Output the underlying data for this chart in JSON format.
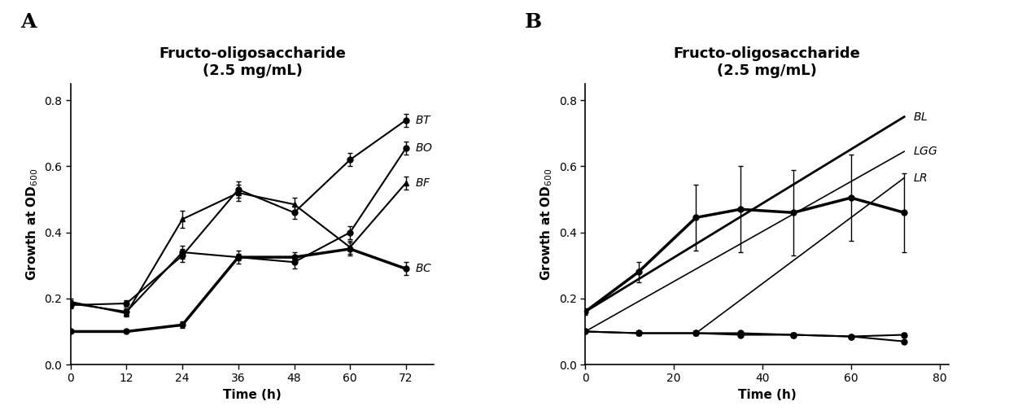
{
  "panel_A": {
    "title": "Fructo-oligosaccharide\n(2.5 mg/mL)",
    "xlabel": "Time (h)",
    "ylabel": "Growth at OD$_{600}$",
    "xlim": [
      0,
      78
    ],
    "ylim": [
      0.0,
      0.85
    ],
    "yticks": [
      0.0,
      0.2,
      0.4,
      0.6,
      0.8
    ],
    "xticks": [
      0,
      12,
      24,
      36,
      48,
      60,
      72
    ],
    "series": {
      "BT": {
        "x": [
          0,
          12,
          24,
          36,
          48,
          60,
          72
        ],
        "y": [
          0.18,
          0.185,
          0.33,
          0.53,
          0.46,
          0.62,
          0.74
        ],
        "yerr": [
          0.01,
          0.01,
          0.02,
          0.025,
          0.02,
          0.02,
          0.02
        ],
        "marker": "o",
        "linewidth": 1.5
      },
      "BO": {
        "x": [
          0,
          12,
          24,
          36,
          48,
          60,
          72
        ],
        "y": [
          0.185,
          0.16,
          0.34,
          0.325,
          0.31,
          0.4,
          0.655
        ],
        "yerr": [
          0.01,
          0.01,
          0.02,
          0.01,
          0.02,
          0.02,
          0.02
        ],
        "marker": "o",
        "linewidth": 1.5
      },
      "BF": {
        "x": [
          0,
          12,
          24,
          36,
          48,
          60,
          72
        ],
        "y": [
          0.19,
          0.155,
          0.44,
          0.52,
          0.485,
          0.355,
          0.55
        ],
        "yerr": [
          0.01,
          0.01,
          0.025,
          0.025,
          0.02,
          0.02,
          0.02
        ],
        "marker": "^",
        "linewidth": 1.5
      },
      "BC": {
        "x": [
          0,
          12,
          24,
          36,
          48,
          60,
          72
        ],
        "y": [
          0.1,
          0.1,
          0.12,
          0.325,
          0.325,
          0.35,
          0.29
        ],
        "yerr": [
          0.005,
          0.005,
          0.01,
          0.02,
          0.015,
          0.02,
          0.02
        ],
        "marker": "o",
        "linewidth": 2.5
      }
    },
    "labels": {
      "BT": 0.74,
      "BO": 0.655,
      "BF": 0.55,
      "BC": 0.29
    }
  },
  "panel_B": {
    "title": "Fructo-oligosaccharide\n(2.5 mg/mL)",
    "xlabel": "Time (h)",
    "ylabel": "Growth at OD$_{600}$",
    "xlim": [
      0,
      82
    ],
    "ylim": [
      0.0,
      0.85
    ],
    "yticks": [
      0.0,
      0.2,
      0.4,
      0.6,
      0.8
    ],
    "xticks": [
      0,
      20,
      40,
      60,
      80
    ],
    "series": {
      "BL": {
        "x": [
          0,
          12,
          25,
          35,
          47,
          60,
          72
        ],
        "y": [
          0.16,
          0.28,
          0.445,
          0.47,
          0.46,
          0.505,
          0.46
        ],
        "yerr": [
          0.01,
          0.03,
          0.1,
          0.13,
          0.13,
          0.13,
          0.12
        ],
        "marker": "o",
        "linewidth": 2.5
      },
      "LGG": {
        "x": [
          0,
          12,
          25,
          35,
          47,
          60,
          72
        ],
        "y": [
          0.1,
          0.095,
          0.095,
          0.095,
          0.09,
          0.085,
          0.09
        ],
        "yerr": [
          0.005,
          0.005,
          0.005,
          0.005,
          0.005,
          0.005,
          0.005
        ],
        "marker": "o",
        "linewidth": 1.5
      },
      "LR": {
        "x": [
          0,
          12,
          25,
          35,
          47,
          60,
          72
        ],
        "y": [
          0.1,
          0.095,
          0.095,
          0.09,
          0.09,
          0.085,
          0.07
        ],
        "yerr": [
          0.005,
          0.005,
          0.005,
          0.005,
          0.005,
          0.005,
          0.005
        ],
        "marker": "o",
        "linewidth": 1.5
      }
    },
    "extra_lines": {
      "BL": {
        "x": [
          0,
          72
        ],
        "y": [
          0.16,
          0.75
        ]
      },
      "LGG": {
        "x": [
          0,
          72
        ],
        "y": [
          0.1,
          0.645
        ]
      },
      "LR": {
        "x": [
          25,
          72
        ],
        "y": [
          0.095,
          0.565
        ]
      }
    },
    "labels": {
      "BL": 0.75,
      "LGG": 0.645,
      "LR": 0.565
    }
  },
  "background_color": "#ffffff",
  "title_fontsize": 13,
  "label_fontsize": 11,
  "tick_fontsize": 10,
  "legend_fontsize": 10,
  "panel_label_fontsize": 18
}
